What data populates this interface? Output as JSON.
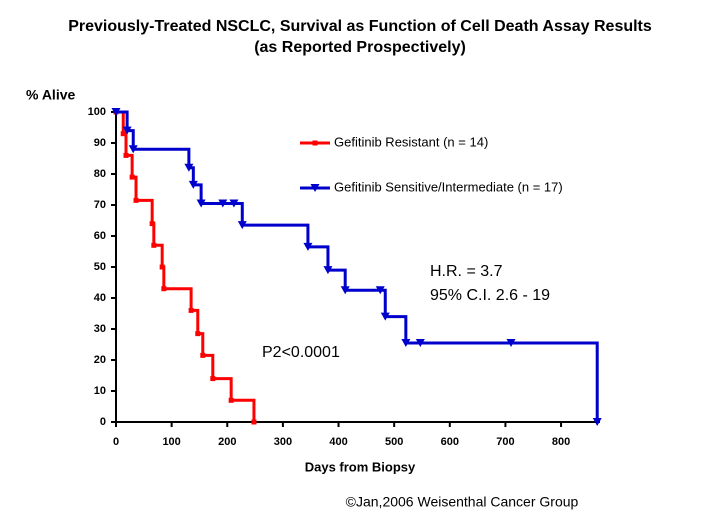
{
  "chart_data": {
    "type": "step",
    "title": "Previously-Treated NSCLC, Survival as Function of Cell Death Assay Results",
    "subtitle": "(as Reported Prospectively)",
    "y_label": "% Alive",
    "x_label": "Days from Biopsy",
    "xlim": [
      0,
      870
    ],
    "ylim": [
      0,
      100
    ],
    "xticks": [
      0,
      100,
      200,
      300,
      400,
      500,
      600,
      700,
      800
    ],
    "yticks": [
      0,
      10,
      20,
      30,
      40,
      50,
      60,
      70,
      80,
      90,
      100
    ],
    "series": [
      {
        "name": "Gefitinib Resistant  (n = 14)",
        "color": "#ff0000",
        "marker": "square",
        "x": [
          0,
          13,
          18,
          29,
          36,
          65,
          68,
          83,
          86,
          135,
          147,
          156,
          174,
          207,
          248
        ],
        "values": [
          100,
          93,
          86,
          79,
          71.5,
          64,
          57,
          50,
          43,
          36,
          28.5,
          21.5,
          14,
          7,
          0
        ]
      },
      {
        "name": "Gefitinib Sensitive/Intermediate (n = 17)",
        "color": "#0000cc",
        "marker": "triangle-down",
        "x": [
          0,
          20,
          31,
          131,
          139,
          153,
          192,
          212,
          227,
          345,
          381,
          412,
          475,
          484,
          521,
          547,
          710,
          865
        ],
        "values": [
          100,
          94,
          88,
          82,
          76.5,
          70.5,
          70.5,
          70.5,
          63.5,
          56.5,
          49,
          42.5,
          42.5,
          34,
          25.5,
          25.5,
          25.5,
          0
        ]
      }
    ],
    "annotations": [
      "H.R. = 3.7",
      "95% C.I. 2.6 - 19",
      "P2<0.0001"
    ],
    "footer": "©Jan,2006 Weisenthal Cancer Group"
  }
}
